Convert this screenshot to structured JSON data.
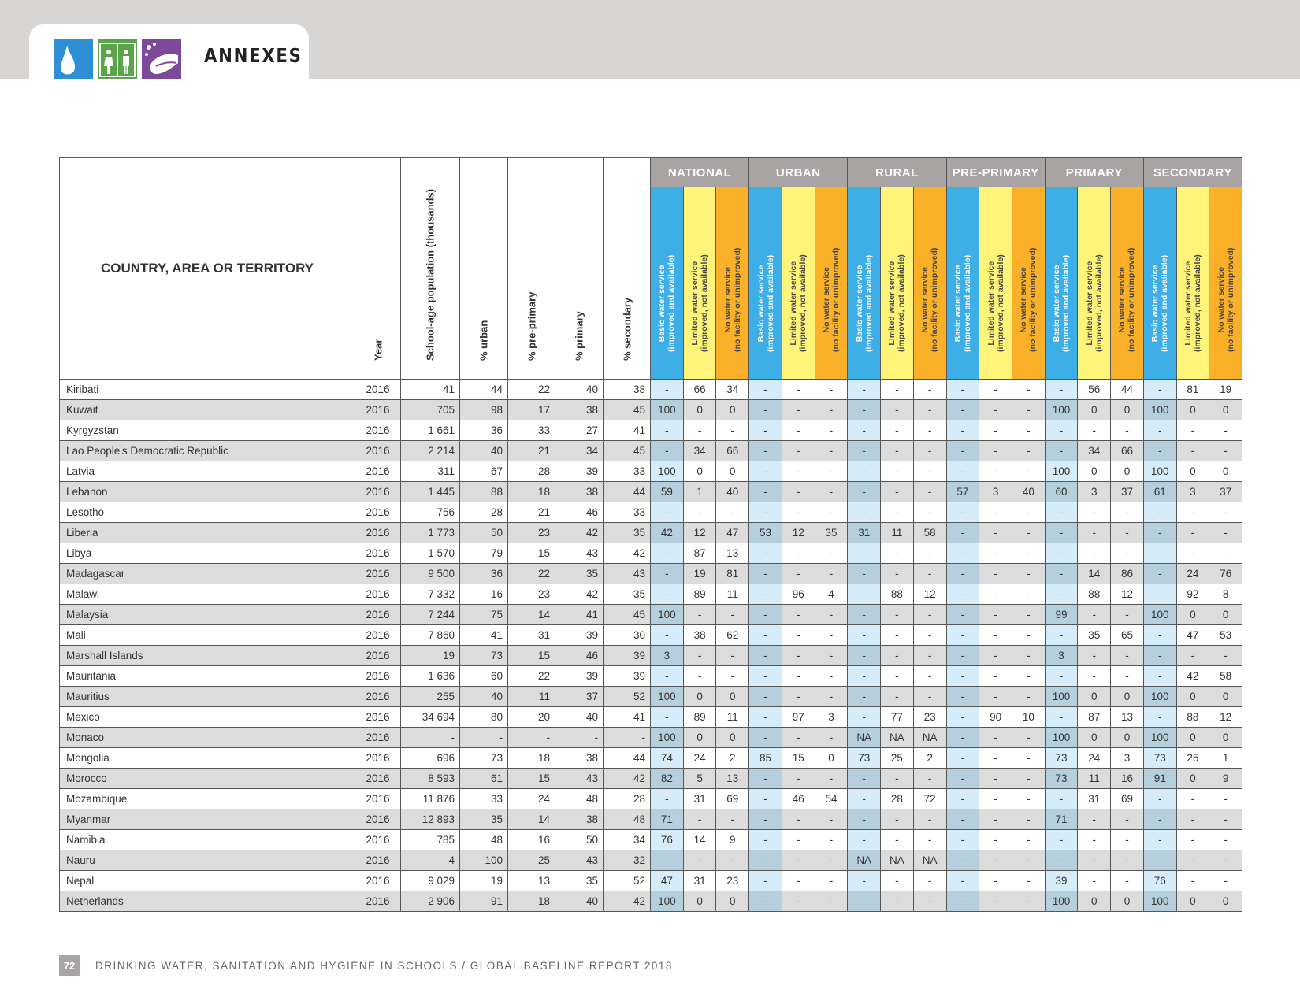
{
  "header": {
    "section_title": "ANNEXES"
  },
  "icons": [
    "water-drop-icon",
    "toilet-icon",
    "handwashing-icon"
  ],
  "table": {
    "country_header": "COUNTRY, AREA OR TERRITORY",
    "col_headers": {
      "year": "Year",
      "pop": "School-age population (thousands)",
      "urban": "% urban",
      "preprimary": "% pre-primary",
      "primary": "% primary",
      "secondary": "% secondary"
    },
    "groups": [
      "NATIONAL",
      "URBAN",
      "RURAL",
      "PRE-PRIMARY",
      "PRIMARY",
      "SECONDARY"
    ],
    "service_labels": [
      "Basic water service\n(improved and available)",
      "Limited water service\n(improved, not available)",
      "No water service\n(no facility or unimproved)"
    ],
    "rows": [
      {
        "name": "Kiribati",
        "year": "2016",
        "pop": "41",
        "urban": "44",
        "pre": "22",
        "pri": "40",
        "sec": "38",
        "vals": [
          "-",
          "66",
          "34",
          "-",
          "-",
          "-",
          "-",
          "-",
          "-",
          "-",
          "-",
          "-",
          "-",
          "56",
          "44",
          "-",
          "81",
          "19"
        ]
      },
      {
        "name": "Kuwait",
        "year": "2016",
        "pop": "705",
        "urban": "98",
        "pre": "17",
        "pri": "38",
        "sec": "45",
        "vals": [
          "100",
          "0",
          "0",
          "-",
          "-",
          "-",
          "-",
          "-",
          "-",
          "-",
          "-",
          "-",
          "100",
          "0",
          "0",
          "100",
          "0",
          "0"
        ]
      },
      {
        "name": "Kyrgyzstan",
        "year": "2016",
        "pop": "1 661",
        "urban": "36",
        "pre": "33",
        "pri": "27",
        "sec": "41",
        "vals": [
          "-",
          "-",
          "-",
          "-",
          "-",
          "-",
          "-",
          "-",
          "-",
          "-",
          "-",
          "-",
          "-",
          "-",
          "-",
          "-",
          "-",
          "-"
        ]
      },
      {
        "name": "Lao People's Democratic Republic",
        "year": "2016",
        "pop": "2 214",
        "urban": "40",
        "pre": "21",
        "pri": "34",
        "sec": "45",
        "vals": [
          "-",
          "34",
          "66",
          "-",
          "-",
          "-",
          "-",
          "-",
          "-",
          "-",
          "-",
          "-",
          "-",
          "34",
          "66",
          "-",
          "-",
          "-"
        ]
      },
      {
        "name": "Latvia",
        "year": "2016",
        "pop": "311",
        "urban": "67",
        "pre": "28",
        "pri": "39",
        "sec": "33",
        "vals": [
          "100",
          "0",
          "0",
          "-",
          "-",
          "-",
          "-",
          "-",
          "-",
          "-",
          "-",
          "-",
          "100",
          "0",
          "0",
          "100",
          "0",
          "0"
        ]
      },
      {
        "name": "Lebanon",
        "year": "2016",
        "pop": "1 445",
        "urban": "88",
        "pre": "18",
        "pri": "38",
        "sec": "44",
        "vals": [
          "59",
          "1",
          "40",
          "-",
          "-",
          "-",
          "-",
          "-",
          "-",
          "57",
          "3",
          "40",
          "60",
          "3",
          "37",
          "61",
          "3",
          "37"
        ]
      },
      {
        "name": "Lesotho",
        "year": "2016",
        "pop": "756",
        "urban": "28",
        "pre": "21",
        "pri": "46",
        "sec": "33",
        "vals": [
          "-",
          "-",
          "-",
          "-",
          "-",
          "-",
          "-",
          "-",
          "-",
          "-",
          "-",
          "-",
          "-",
          "-",
          "-",
          "-",
          "-",
          "-"
        ]
      },
      {
        "name": "Liberia",
        "year": "2016",
        "pop": "1 773",
        "urban": "50",
        "pre": "23",
        "pri": "42",
        "sec": "35",
        "vals": [
          "42",
          "12",
          "47",
          "53",
          "12",
          "35",
          "31",
          "11",
          "58",
          "-",
          "-",
          "-",
          "-",
          "-",
          "-",
          "-",
          "-",
          "-"
        ]
      },
      {
        "name": "Libya",
        "year": "2016",
        "pop": "1 570",
        "urban": "79",
        "pre": "15",
        "pri": "43",
        "sec": "42",
        "vals": [
          "-",
          "87",
          "13",
          "-",
          "-",
          "-",
          "-",
          "-",
          "-",
          "-",
          "-",
          "-",
          "-",
          "-",
          "-",
          "-",
          "-",
          "-"
        ]
      },
      {
        "name": "Madagascar",
        "year": "2016",
        "pop": "9 500",
        "urban": "36",
        "pre": "22",
        "pri": "35",
        "sec": "43",
        "vals": [
          "-",
          "19",
          "81",
          "-",
          "-",
          "-",
          "-",
          "-",
          "-",
          "-",
          "-",
          "-",
          "-",
          "14",
          "86",
          "-",
          "24",
          "76"
        ]
      },
      {
        "name": "Malawi",
        "year": "2016",
        "pop": "7 332",
        "urban": "16",
        "pre": "23",
        "pri": "42",
        "sec": "35",
        "vals": [
          "-",
          "89",
          "11",
          "-",
          "96",
          "4",
          "-",
          "88",
          "12",
          "-",
          "-",
          "-",
          "-",
          "88",
          "12",
          "-",
          "92",
          "8"
        ]
      },
      {
        "name": "Malaysia",
        "year": "2016",
        "pop": "7 244",
        "urban": "75",
        "pre": "14",
        "pri": "41",
        "sec": "45",
        "vals": [
          "100",
          "-",
          "-",
          "-",
          "-",
          "-",
          "-",
          "-",
          "-",
          "-",
          "-",
          "-",
          "99",
          "-",
          "-",
          "100",
          "0",
          "0"
        ]
      },
      {
        "name": "Mali",
        "year": "2016",
        "pop": "7 860",
        "urban": "41",
        "pre": "31",
        "pri": "39",
        "sec": "30",
        "vals": [
          "-",
          "38",
          "62",
          "-",
          "-",
          "-",
          "-",
          "-",
          "-",
          "-",
          "-",
          "-",
          "-",
          "35",
          "65",
          "-",
          "47",
          "53"
        ]
      },
      {
        "name": "Marshall Islands",
        "year": "2016",
        "pop": "19",
        "urban": "73",
        "pre": "15",
        "pri": "46",
        "sec": "39",
        "vals": [
          "3",
          "-",
          "-",
          "-",
          "-",
          "-",
          "-",
          "-",
          "-",
          "-",
          "-",
          "-",
          "3",
          "-",
          "-",
          "-",
          "-",
          "-"
        ]
      },
      {
        "name": "Mauritania",
        "year": "2016",
        "pop": "1 636",
        "urban": "60",
        "pre": "22",
        "pri": "39",
        "sec": "39",
        "vals": [
          "-",
          "-",
          "-",
          "-",
          "-",
          "-",
          "-",
          "-",
          "-",
          "-",
          "-",
          "-",
          "-",
          "-",
          "-",
          "-",
          "42",
          "58"
        ]
      },
      {
        "name": "Mauritius",
        "year": "2016",
        "pop": "255",
        "urban": "40",
        "pre": "11",
        "pri": "37",
        "sec": "52",
        "vals": [
          "100",
          "0",
          "0",
          "-",
          "-",
          "-",
          "-",
          "-",
          "-",
          "-",
          "-",
          "-",
          "100",
          "0",
          "0",
          "100",
          "0",
          "0"
        ]
      },
      {
        "name": "Mexico",
        "year": "2016",
        "pop": "34 694",
        "urban": "80",
        "pre": "20",
        "pri": "40",
        "sec": "41",
        "vals": [
          "-",
          "89",
          "11",
          "-",
          "97",
          "3",
          "-",
          "77",
          "23",
          "-",
          "90",
          "10",
          "-",
          "87",
          "13",
          "-",
          "88",
          "12"
        ]
      },
      {
        "name": "Monaco",
        "year": "2016",
        "pop": "-",
        "urban": "-",
        "pre": "-",
        "pri": "-",
        "sec": "-",
        "vals": [
          "100",
          "0",
          "0",
          "-",
          "-",
          "-",
          "NA",
          "NA",
          "NA",
          "-",
          "-",
          "-",
          "100",
          "0",
          "0",
          "100",
          "0",
          "0"
        ]
      },
      {
        "name": "Mongolia",
        "year": "2016",
        "pop": "696",
        "urban": "73",
        "pre": "18",
        "pri": "38",
        "sec": "44",
        "vals": [
          "74",
          "24",
          "2",
          "85",
          "15",
          "0",
          "73",
          "25",
          "2",
          "-",
          "-",
          "-",
          "73",
          "24",
          "3",
          "73",
          "25",
          "1"
        ]
      },
      {
        "name": "Morocco",
        "year": "2016",
        "pop": "8 593",
        "urban": "61",
        "pre": "15",
        "pri": "43",
        "sec": "42",
        "vals": [
          "82",
          "5",
          "13",
          "-",
          "-",
          "-",
          "-",
          "-",
          "-",
          "-",
          "-",
          "-",
          "73",
          "11",
          "16",
          "91",
          "0",
          "9"
        ]
      },
      {
        "name": "Mozambique",
        "year": "2016",
        "pop": "11 876",
        "urban": "33",
        "pre": "24",
        "pri": "48",
        "sec": "28",
        "vals": [
          "-",
          "31",
          "69",
          "-",
          "46",
          "54",
          "-",
          "28",
          "72",
          "-",
          "-",
          "-",
          "-",
          "31",
          "69",
          "-",
          "-",
          "-"
        ]
      },
      {
        "name": "Myanmar",
        "year": "2016",
        "pop": "12 893",
        "urban": "35",
        "pre": "14",
        "pri": "38",
        "sec": "48",
        "vals": [
          "71",
          "-",
          "-",
          "-",
          "-",
          "-",
          "-",
          "-",
          "-",
          "-",
          "-",
          "-",
          "71",
          "-",
          "-",
          "-",
          "-",
          "-"
        ]
      },
      {
        "name": "Namibia",
        "year": "2016",
        "pop": "785",
        "urban": "48",
        "pre": "16",
        "pri": "50",
        "sec": "34",
        "vals": [
          "76",
          "14",
          "9",
          "-",
          "-",
          "-",
          "-",
          "-",
          "-",
          "-",
          "-",
          "-",
          "-",
          "-",
          "-",
          "-",
          "-",
          "-"
        ]
      },
      {
        "name": "Nauru",
        "year": "2016",
        "pop": "4",
        "urban": "100",
        "pre": "25",
        "pri": "43",
        "sec": "32",
        "vals": [
          "-",
          "-",
          "-",
          "-",
          "-",
          "-",
          "NA",
          "NA",
          "NA",
          "-",
          "-",
          "-",
          "-",
          "-",
          "-",
          "-",
          "-",
          "-"
        ]
      },
      {
        "name": "Nepal",
        "year": "2016",
        "pop": "9 029",
        "urban": "19",
        "pre": "13",
        "pri": "35",
        "sec": "52",
        "vals": [
          "47",
          "31",
          "23",
          "-",
          "-",
          "-",
          "-",
          "-",
          "-",
          "-",
          "-",
          "-",
          "39",
          "-",
          "-",
          "76",
          "-",
          "-"
        ]
      },
      {
        "name": "Netherlands",
        "year": "2016",
        "pop": "2 906",
        "urban": "91",
        "pre": "18",
        "pri": "40",
        "sec": "42",
        "vals": [
          "100",
          "0",
          "0",
          "-",
          "-",
          "-",
          "-",
          "-",
          "-",
          "-",
          "-",
          "-",
          "100",
          "0",
          "0",
          "100",
          "0",
          "0"
        ]
      }
    ]
  },
  "footer": {
    "page_number": "72",
    "text": "DRINKING WATER, SANITATION AND HYGIENE IN SCHOOLS / GLOBAL BASELINE REPORT 2018"
  }
}
